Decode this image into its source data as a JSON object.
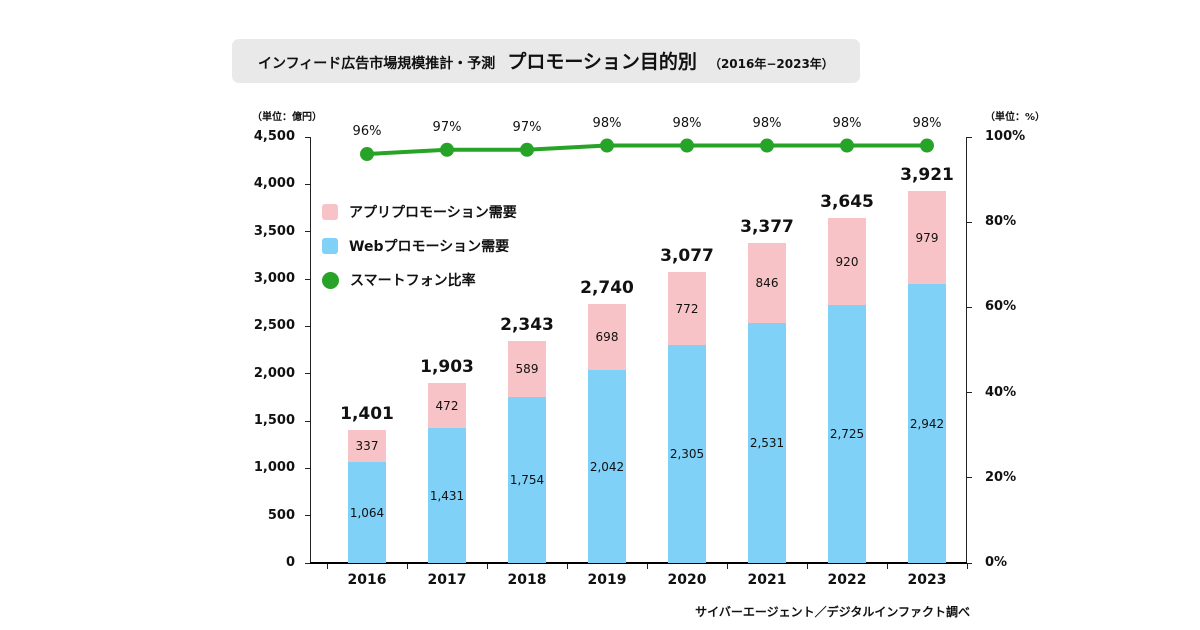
{
  "title": {
    "part1": "インフィード広告市場規模推計・予測",
    "part2": "プロモーション目的別",
    "part3": "（2016年−2023年）"
  },
  "units": {
    "left": "（単位：億円）",
    "right": "（単位：%）"
  },
  "legend": [
    {
      "label": "アプリプロモーション需要",
      "shape": "square",
      "color": "#f8c3c6"
    },
    {
      "label": "Webプロモーション需要",
      "shape": "square",
      "color": "#7fd1f7"
    },
    {
      "label": "スマートフォン比率",
      "shape": "circle",
      "color": "#27a327"
    }
  ],
  "source": "サイバーエージェント／デジタルインファクト調べ",
  "chart_data": {
    "type": "bar",
    "subtype": "stacked-bar-with-line",
    "categories": [
      "2016",
      "2017",
      "2018",
      "2019",
      "2020",
      "2021",
      "2022",
      "2023"
    ],
    "series": [
      {
        "name": "Webプロモーション需要",
        "type": "bar",
        "color": "#7fd1f7",
        "axis": "left",
        "values": [
          1064,
          1431,
          1754,
          2042,
          2305,
          2531,
          2725,
          2942
        ],
        "labels": [
          "1,064",
          "1,431",
          "1,754",
          "2,042",
          "2,305",
          "2,531",
          "2,725",
          "2,942"
        ]
      },
      {
        "name": "アプリプロモーション需要",
        "type": "bar",
        "color": "#f8c3c6",
        "axis": "left",
        "values": [
          337,
          472,
          589,
          698,
          772,
          846,
          920,
          979
        ],
        "labels": [
          "337",
          "472",
          "589",
          "698",
          "772",
          "846",
          "920",
          "979"
        ]
      },
      {
        "name": "スマートフォン比率",
        "type": "line",
        "color": "#27a327",
        "axis": "right",
        "values": [
          96,
          97,
          97,
          98,
          98,
          98,
          98,
          98
        ],
        "labels": [
          "96%",
          "97%",
          "97%",
          "98%",
          "98%",
          "98%",
          "98%",
          "98%"
        ]
      }
    ],
    "totals": [
      1401,
      1903,
      2343,
      2740,
      3077,
      3377,
      3645,
      3921
    ],
    "total_labels": [
      "1,401",
      "1,903",
      "2,343",
      "2,740",
      "3,077",
      "3,377",
      "3,645",
      "3,921"
    ],
    "left_axis": {
      "min": 0,
      "max": 4500,
      "ticks": [
        "4,500",
        "4,000",
        "3,500",
        "3,000",
        "2,500",
        "2,000",
        "1,500",
        "1,000",
        "500",
        "0"
      ]
    },
    "right_axis": {
      "min": 0,
      "max": 100,
      "ticks": [
        "100%",
        "80%",
        "60%",
        "40%",
        "20%",
        "0%"
      ]
    },
    "grid": false,
    "legend_position": "upper-left-inside"
  }
}
